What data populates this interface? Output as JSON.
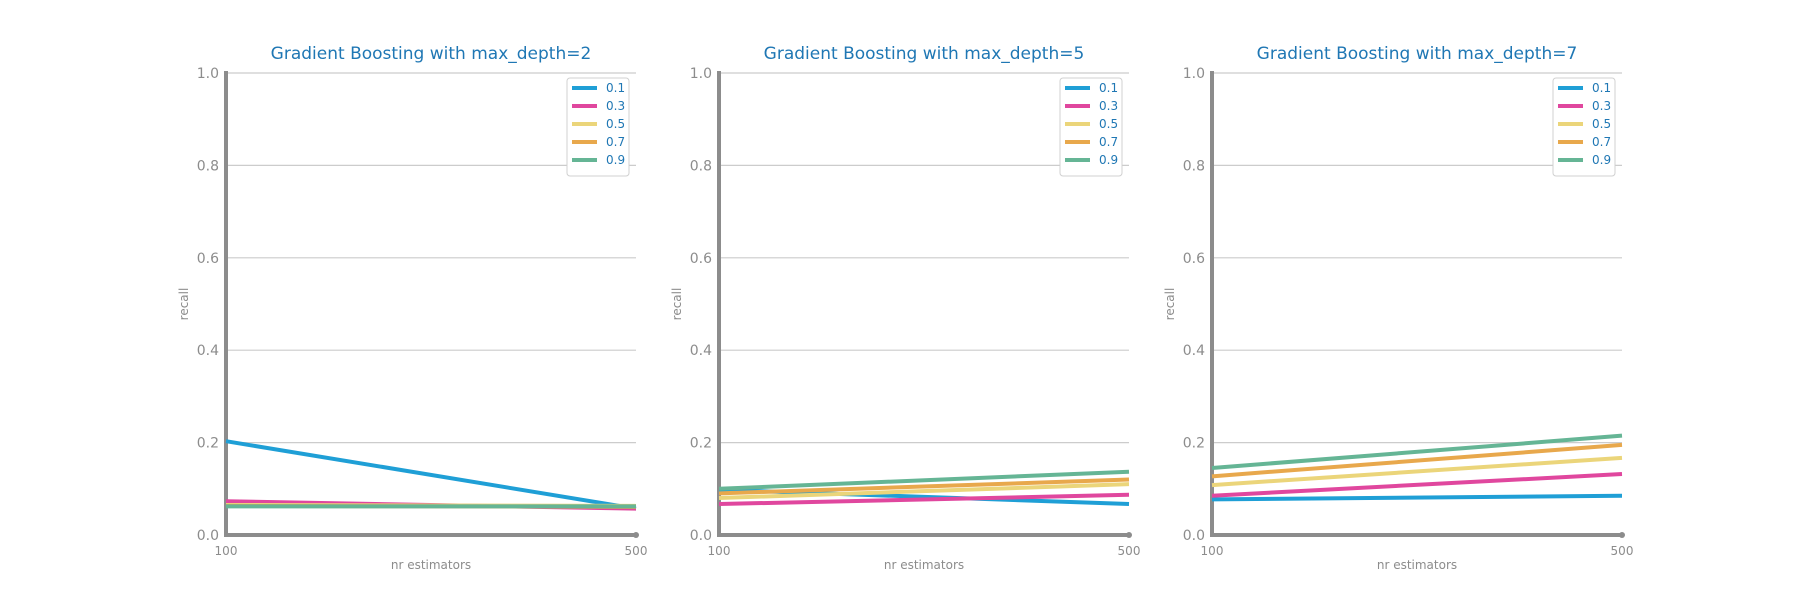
{
  "colors": {
    "title": "#1f77b4",
    "axis": "#8c8c8c",
    "grid": "#cccccc",
    "legend_text": "#1f77b4"
  },
  "chart_data": [
    {
      "type": "line",
      "title": "Gradient Boosting with max_depth=2",
      "xlabel": "nr estimators",
      "ylabel": "recall",
      "x": [
        100,
        500
      ],
      "xticks": [
        "100",
        "500"
      ],
      "ylim": [
        0,
        1
      ],
      "yticks": [
        "0.0",
        "0.2",
        "0.4",
        "0.6",
        "0.8",
        "1.0"
      ],
      "grid": true,
      "legend_position": "top-right",
      "series": [
        {
          "name": "0.1",
          "color": "#1f9fd6",
          "values": [
            0.203,
            0.057
          ]
        },
        {
          "name": "0.3",
          "color": "#e0479e",
          "values": [
            0.073,
            0.057
          ]
        },
        {
          "name": "0.5",
          "color": "#ebd57a",
          "values": [
            0.065,
            0.063
          ]
        },
        {
          "name": "0.7",
          "color": "#e8a84c",
          "values": [
            0.063,
            0.061
          ]
        },
        {
          "name": "0.9",
          "color": "#65b595",
          "values": [
            0.062,
            0.062
          ]
        }
      ]
    },
    {
      "type": "line",
      "title": "Gradient Boosting with max_depth=5",
      "xlabel": "nr estimators",
      "ylabel": "recall",
      "x": [
        100,
        500
      ],
      "xticks": [
        "100",
        "500"
      ],
      "ylim": [
        0,
        1
      ],
      "yticks": [
        "0.0",
        "0.2",
        "0.4",
        "0.6",
        "0.8",
        "1.0"
      ],
      "grid": true,
      "legend_position": "top-right",
      "series": [
        {
          "name": "0.1",
          "color": "#1f9fd6",
          "values": [
            0.098,
            0.067
          ]
        },
        {
          "name": "0.3",
          "color": "#e0479e",
          "values": [
            0.067,
            0.087
          ]
        },
        {
          "name": "0.5",
          "color": "#ebd57a",
          "values": [
            0.08,
            0.11
          ]
        },
        {
          "name": "0.7",
          "color": "#e8a84c",
          "values": [
            0.09,
            0.12
          ]
        },
        {
          "name": "0.9",
          "color": "#65b595",
          "values": [
            0.1,
            0.137
          ]
        }
      ]
    },
    {
      "type": "line",
      "title": "Gradient Boosting with max_depth=7",
      "xlabel": "nr estimators",
      "ylabel": "recall",
      "x": [
        100,
        500
      ],
      "xticks": [
        "100",
        "500"
      ],
      "ylim": [
        0,
        1
      ],
      "yticks": [
        "0.0",
        "0.2",
        "0.4",
        "0.6",
        "0.8",
        "1.0"
      ],
      "grid": true,
      "legend_position": "top-right",
      "series": [
        {
          "name": "0.1",
          "color": "#1f9fd6",
          "values": [
            0.077,
            0.085
          ]
        },
        {
          "name": "0.3",
          "color": "#e0479e",
          "values": [
            0.085,
            0.132
          ]
        },
        {
          "name": "0.5",
          "color": "#ebd57a",
          "values": [
            0.108,
            0.167
          ]
        },
        {
          "name": "0.7",
          "color": "#e8a84c",
          "values": [
            0.127,
            0.195
          ]
        },
        {
          "name": "0.9",
          "color": "#65b595",
          "values": [
            0.145,
            0.215
          ]
        }
      ]
    }
  ]
}
